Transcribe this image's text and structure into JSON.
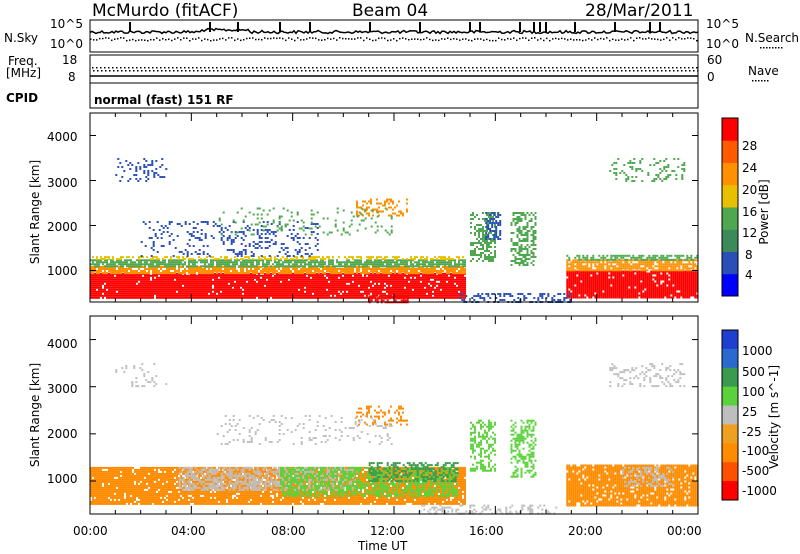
{
  "header": {
    "station": "McMurdo (fitACF)",
    "beam": "Beam 04",
    "date": "28/Mar/2011"
  },
  "noise_panel": {
    "left_label": "N.Sky",
    "right_label": "N.Search",
    "left_ticks": [
      "10^5",
      "10^0"
    ],
    "right_ticks": [
      "10^5",
      "10^0"
    ]
  },
  "freq_panel": {
    "left_label_1": "Freq.",
    "left_label_2": "[MHz]",
    "right_label": "Nave",
    "left_ticks": [
      "18",
      "8"
    ],
    "right_ticks": [
      "60",
      "0"
    ]
  },
  "cpid": {
    "label": "CPID",
    "text": "normal (fast) 151 RF"
  },
  "chart_data": [
    {
      "type": "heatmap",
      "title": "",
      "xlabel": "",
      "ylabel": "Slant Range [km]",
      "y_ticks": [
        "1000",
        "2000",
        "3000",
        "4000"
      ],
      "ylim": [
        300,
        4500
      ],
      "colorbar": {
        "label": "Power [dB]",
        "ticks": [
          "4",
          "8",
          "12",
          "16",
          "20",
          "24",
          "28"
        ],
        "colors": [
          "#0000ff",
          "#2a4fb8",
          "#3c8a5a",
          "#4fa84f",
          "#e8c000",
          "#ff9000",
          "#ff5a00",
          "#ff0000"
        ]
      }
    },
    {
      "type": "heatmap",
      "title": "",
      "xlabel": "Time UT",
      "ylabel": "Slant Range [km]",
      "y_ticks": [
        "1000",
        "2000",
        "3000",
        "4000"
      ],
      "x_ticks": [
        "00:00",
        "04:00",
        "08:00",
        "12:00",
        "16:00",
        "20:00",
        "00:00"
      ],
      "ylim": [
        300,
        4500
      ],
      "colorbar": {
        "label": "Velocity [m s^-1]",
        "ticks": [
          "1000",
          "500",
          "100",
          "25",
          "-25",
          "-100",
          "-500",
          "-1000"
        ],
        "colors": [
          "#1f3fd0",
          "#2a6ad0",
          "#3c9a50",
          "#5bd23c",
          "#bebebe",
          "#f0a020",
          "#ff8c00",
          "#ff5000",
          "#ff0000"
        ]
      }
    }
  ]
}
